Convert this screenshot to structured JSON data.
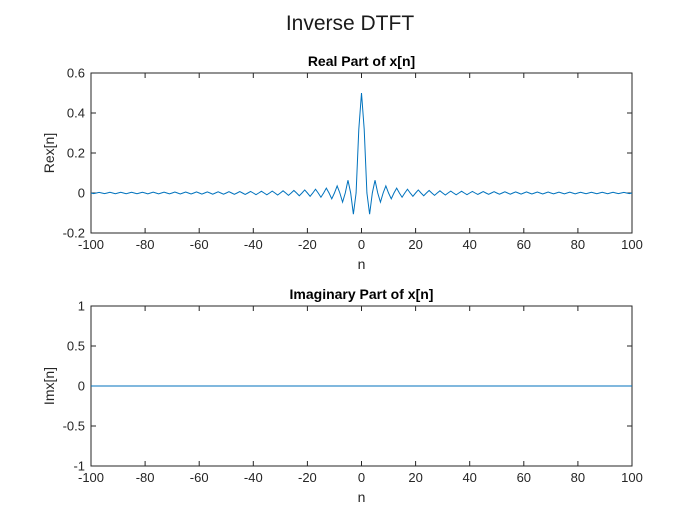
{
  "figure": {
    "title": "Inverse DTFT"
  },
  "chart_data": [
    {
      "type": "line",
      "title": "Real Part of x[n]",
      "xlabel": "n",
      "ylabel": "Rex[n]",
      "xlim": [
        -100,
        100
      ],
      "ylim": [
        -0.2,
        0.6
      ],
      "xticks": [
        -100,
        -80,
        -60,
        -40,
        -20,
        0,
        20,
        40,
        60,
        80,
        100
      ],
      "yticks": [
        -0.2,
        0,
        0.2,
        0.4,
        0.6
      ],
      "ytick_labels": [
        "-0.2",
        "0",
        "0.2",
        "0.4",
        "0.6"
      ],
      "grid": false,
      "line_color": "#0072BD",
      "series": [
        {
          "function": "sin(pi*n/2)/(pi*n)",
          "x_range": [
            -100,
            100
          ],
          "x_step": 1,
          "value_at_zero": 0.5
        }
      ]
    },
    {
      "type": "line",
      "title": "Imaginary Part of x[n]",
      "xlabel": "n",
      "ylabel": "Imx[n]",
      "xlim": [
        -100,
        100
      ],
      "ylim": [
        -1,
        1
      ],
      "xticks": [
        -100,
        -80,
        -60,
        -40,
        -20,
        0,
        20,
        40,
        60,
        80,
        100
      ],
      "yticks": [
        -1,
        -0.5,
        0,
        0.5,
        1
      ],
      "ytick_labels": [
        "-1",
        "-0.5",
        "0",
        "0.5",
        "1"
      ],
      "grid": false,
      "line_color": "#0072BD",
      "series": [
        {
          "function": "0",
          "x_range": [
            -100,
            100
          ],
          "x_step": 1
        }
      ]
    }
  ]
}
